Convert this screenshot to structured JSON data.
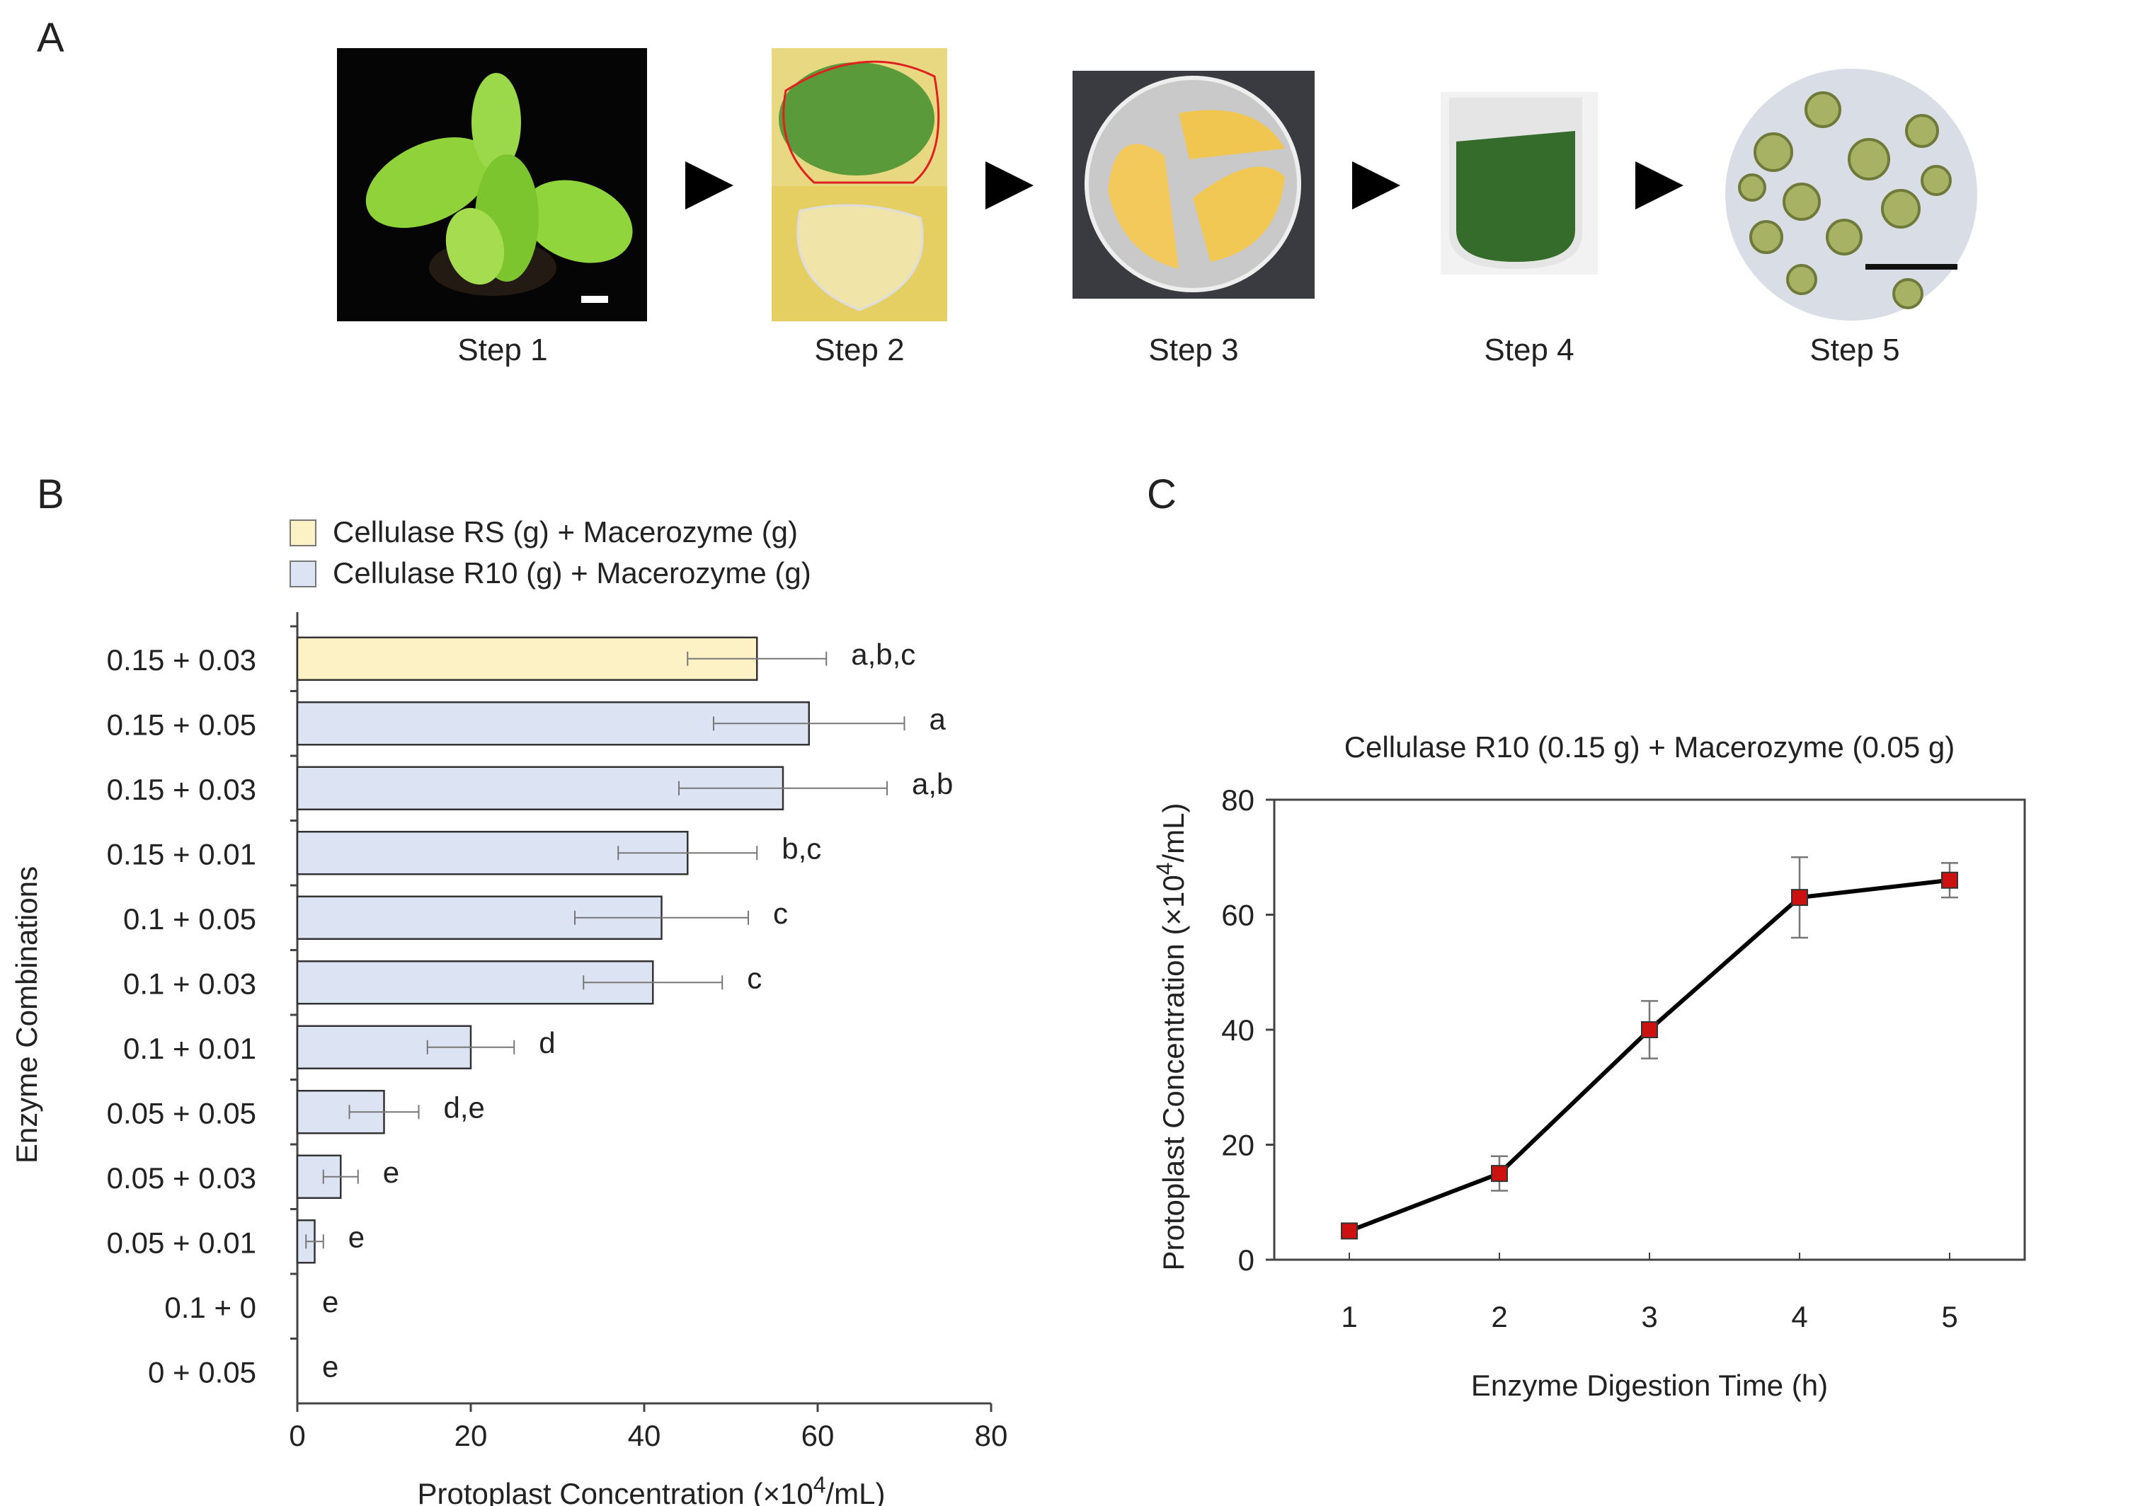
{
  "panels": {
    "a": "A",
    "b": "B",
    "c": "C"
  },
  "steps": [
    {
      "label": "Step 1",
      "image": "seedling-photo"
    },
    {
      "label": "Step 2",
      "image": "leaf-epidermis-photo"
    },
    {
      "label": "Step 3",
      "image": "petri-dish-photo"
    },
    {
      "label": "Step 4",
      "image": "tube-photo"
    },
    {
      "label": "Step 5",
      "image": "protoplast-micrograph"
    }
  ],
  "chart_data": [
    {
      "type": "bar",
      "orientation": "horizontal",
      "categories": [
        "0.15 + 0.03",
        "0.15 + 0.05",
        "0.15 + 0.03",
        "0.15 + 0.01",
        "0.1 + 0.05",
        "0.1 + 0.03",
        "0.1 + 0.01",
        "0.05 + 0.05",
        "0.05 + 0.03",
        "0.05 + 0.01",
        "0.1 + 0",
        "0 + 0.05"
      ],
      "values": [
        53,
        59,
        56,
        45,
        42,
        41,
        20,
        10,
        5,
        2,
        0,
        0
      ],
      "errors": [
        8,
        11,
        12,
        8,
        10,
        8,
        5,
        4,
        2,
        1,
        0,
        0
      ],
      "significance": [
        "a,b,c",
        "a",
        "a,b",
        "b,c",
        "c",
        "c",
        "d",
        "d,e",
        "e",
        "e",
        "e",
        "e"
      ],
      "series_index": [
        0,
        1,
        1,
        1,
        1,
        1,
        1,
        1,
        1,
        1,
        1,
        1
      ],
      "series": [
        {
          "name": "Cellulase RS (g) + Macerozyme (g)",
          "color": "#fdf2c6"
        },
        {
          "name": "Cellulase R10 (g) + Macerozyme (g)",
          "color": "#dce3f3"
        }
      ],
      "xlabel_main": "Protoplast Concentration (×10",
      "xlabel_sup": "4",
      "xlabel_tail": "/mL)",
      "ylabel": "Enzyme Combinations",
      "xlim": [
        0,
        80
      ],
      "xticks": [
        0,
        20,
        40,
        60,
        80
      ],
      "legend_position": "top"
    },
    {
      "type": "line",
      "title": "Cellulase R10 (0.15 g) + Macerozyme (0.05 g)",
      "x": [
        1,
        2,
        3,
        4,
        5
      ],
      "y": [
        5,
        15,
        40,
        63,
        66
      ],
      "errors": [
        0.5,
        3,
        5,
        7,
        3
      ],
      "xlabel": "Enzyme Digestion Time  (h)",
      "ylabel_main": "Protoplast Concentration (×10",
      "ylabel_sup": "4",
      "ylabel_tail": "/mL)",
      "xlim": [
        0.5,
        5.5
      ],
      "ylim": [
        0,
        80
      ],
      "yticks": [
        0,
        20,
        40,
        60,
        80
      ],
      "xticks": [
        1,
        2,
        3,
        4,
        5
      ],
      "marker_color": "#cc1111",
      "line_color": "#000000"
    }
  ]
}
